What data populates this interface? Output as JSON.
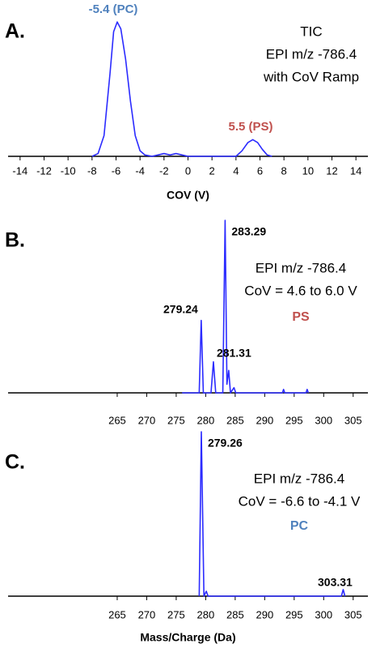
{
  "chart_data": [
    {
      "type": "line",
      "label": "A.",
      "xlabel": "COV (V)",
      "color": "#2b2bff",
      "x": [
        -8,
        -7.5,
        -7,
        -6.5,
        -6.2,
        -5.9,
        -5.6,
        -5.2,
        -4.8,
        -4.4,
        -4,
        -3.6,
        -3,
        -2.5,
        -2,
        -1.5,
        -1,
        -0.5,
        0,
        4,
        4.5,
        5,
        5.4,
        5.8,
        6.2,
        6.6,
        7
      ],
      "values": [
        0,
        2,
        15,
        60,
        90,
        97,
        92,
        70,
        40,
        15,
        4,
        1,
        0,
        1,
        2,
        1,
        2,
        1,
        0,
        0,
        4,
        10,
        12,
        10,
        5,
        1,
        0
      ],
      "xlim": [
        -15,
        15
      ],
      "ylim": [
        0,
        100
      ],
      "xticks": [
        -14,
        -12,
        -10,
        -8,
        -6,
        -4,
        -2,
        0,
        2,
        4,
        6,
        8,
        10,
        12,
        14
      ],
      "annotations": [
        {
          "text": "-5.4 (PC)",
          "color": "#4f81bd"
        },
        {
          "text": "TIC",
          "color": "#000000"
        },
        {
          "text": "EPI m/z -786.4",
          "color": "#000000"
        },
        {
          "text": "with CoV Ramp",
          "color": "#000000"
        },
        {
          "text": "5.5 (PS)",
          "color": "#c0504d"
        }
      ]
    },
    {
      "type": "line",
      "label": "B.",
      "color": "#2b2bff",
      "x": [
        276,
        278.9,
        279.24,
        279.6,
        280.9,
        281.31,
        281.7,
        282.9,
        283.29,
        283.6,
        283.9,
        284.2,
        284.8,
        285.1,
        293,
        293.2,
        293.4,
        297,
        297.2,
        297.4
      ],
      "values": [
        0,
        0,
        42,
        0,
        0,
        18,
        0,
        0,
        100,
        5,
        13,
        0,
        3,
        0,
        0,
        2,
        0,
        0,
        2,
        0
      ],
      "xlim": [
        246.5,
        307.5
      ],
      "ylim": [
        0,
        100
      ],
      "xticks": [
        265,
        270,
        275,
        280,
        285,
        290,
        295,
        300,
        305
      ],
      "annotations": [
        {
          "text": "283.29",
          "color": "#000000"
        },
        {
          "text": "279.24",
          "color": "#000000"
        },
        {
          "text": "281.31",
          "color": "#000000"
        },
        {
          "text": "EPI m/z -786.4",
          "color": "#000000"
        },
        {
          "text": "CoV = 4.6 to 6.0 V",
          "color": "#000000"
        },
        {
          "text": "PS",
          "color": "#c0504d"
        }
      ]
    },
    {
      "type": "line",
      "label": "C.",
      "xlabel": "Mass/Charge (Da)",
      "color": "#2b2bff",
      "x": [
        278.9,
        279.26,
        279.7,
        280.1,
        280.4,
        303,
        303.31,
        303.6
      ],
      "values": [
        0,
        100,
        0,
        3,
        0,
        0,
        4,
        0
      ],
      "xlim": [
        246.5,
        307.5
      ],
      "ylim": [
        0,
        100
      ],
      "xticks": [
        265,
        270,
        275,
        280,
        285,
        290,
        295,
        300,
        305
      ],
      "annotations": [
        {
          "text": "279.26",
          "color": "#000000"
        },
        {
          "text": "EPI m/z -786.4",
          "color": "#000000"
        },
        {
          "text": "CoV = -6.6 to -4.1 V",
          "color": "#000000"
        },
        {
          "text": "PC",
          "color": "#4f81bd"
        },
        {
          "text": "303.31",
          "color": "#000000"
        }
      ]
    }
  ]
}
